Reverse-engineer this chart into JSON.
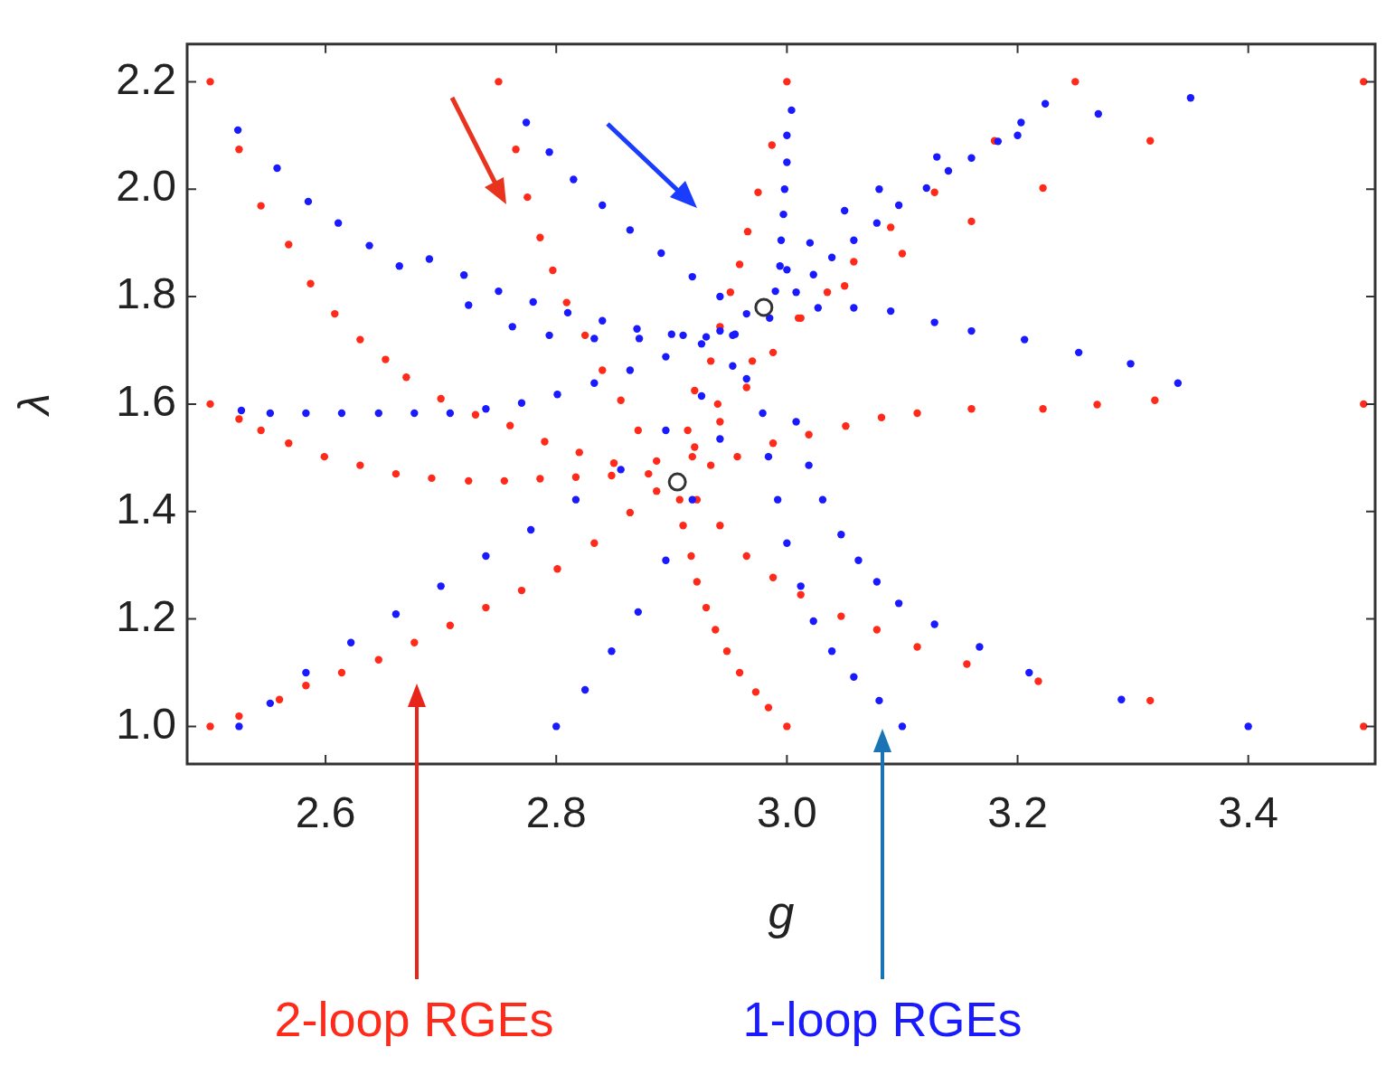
{
  "chart_data": {
    "type": "scatter",
    "xlabel": "g",
    "ylabel": "λ",
    "xlim": [
      2.48,
      3.51
    ],
    "ylim": [
      0.93,
      2.27
    ],
    "xticks": [
      2.6,
      2.8,
      {
        "value": 3.0,
        "label": "3.0"
      },
      3.2,
      3.4
    ],
    "yticks": [
      {
        "value": 1.0,
        "label": "1.0"
      },
      1.2,
      1.4,
      1.6,
      1.8,
      {
        "value": 2.0,
        "label": "2.0"
      },
      2.2
    ],
    "grid": false,
    "legend": "bottom",
    "marker": "circle",
    "series": [
      {
        "name": "2-loop RGEs",
        "color": "#ff2a1a",
        "x": [
          2.5,
          2.525,
          2.544,
          2.568,
          2.587,
          2.608,
          2.63,
          2.652,
          2.67,
          2.7,
          2.73,
          2.76,
          2.79,
          2.82,
          2.85,
          2.88,
          2.75,
          2.765,
          2.775,
          2.786,
          2.797,
          2.809,
          2.825,
          2.84,
          2.856,
          2.871,
          2.887,
          3.0,
          2.987,
          2.975,
          2.966,
          2.959,
          2.951,
          2.942,
          2.934,
          2.92,
          2.914,
          3.25,
          3.18,
          3.16,
          3.1,
          3.05,
          3.01,
          2.97,
          2.94,
          2.92,
          3.315,
          3.222,
          3.128,
          3.09,
          3.058,
          3.035,
          3.012,
          2.988,
          2.965,
          2.942,
          2.918,
          3.319,
          3.269,
          3.222,
          3.16,
          3.113,
          3.082,
          3.051,
          3.019,
          2.988,
          2.957,
          2.934,
          2.5,
          2.525,
          2.544,
          2.568,
          2.599,
          2.63,
          2.661,
          2.692,
          2.724,
          2.755,
          2.786,
          2.817,
          2.848,
          2.5,
          2.525,
          2.56,
          2.583,
          2.614,
          2.646,
          2.677,
          2.708,
          2.739,
          2.77,
          2.801,
          2.833,
          2.864,
          2.887,
          3.0,
          2.984,
          2.973,
          2.959,
          2.948,
          2.938,
          2.93,
          2.922,
          2.917,
          2.91,
          2.907,
          3.5,
          3.315,
          3.218,
          3.156,
          3.113,
          3.078,
          3.047,
          3.012,
          2.988,
          2.965,
          2.942,
          2.922,
          3.5,
          3.5
        ],
        "values": [
          2.2,
          2.074,
          1.969,
          1.897,
          1.824,
          1.768,
          1.72,
          1.683,
          1.65,
          1.61,
          1.58,
          1.56,
          1.53,
          1.51,
          1.49,
          1.47,
          2.2,
          2.074,
          1.985,
          1.91,
          1.849,
          1.789,
          1.728,
          1.663,
          1.607,
          1.551,
          1.494,
          2.2,
          2.082,
          1.994,
          1.921,
          1.86,
          1.808,
          1.744,
          1.68,
          1.625,
          1.551,
          2.2,
          2.09,
          1.94,
          1.88,
          1.82,
          1.76,
          1.68,
          1.6,
          1.52,
          2.09,
          2.002,
          1.994,
          1.929,
          1.865,
          1.808,
          1.76,
          1.696,
          1.631,
          1.567,
          1.502,
          1.607,
          1.599,
          1.591,
          1.591,
          1.583,
          1.575,
          1.559,
          1.543,
          1.527,
          1.502,
          1.486,
          1.6,
          1.572,
          1.551,
          1.527,
          1.502,
          1.486,
          1.47,
          1.462,
          1.457,
          1.457,
          1.461,
          1.464,
          1.467,
          1.0,
          1.019,
          1.05,
          1.076,
          1.1,
          1.124,
          1.156,
          1.188,
          1.221,
          1.253,
          1.293,
          1.341,
          1.398,
          1.438,
          1.0,
          1.035,
          1.064,
          1.1,
          1.14,
          1.18,
          1.221,
          1.269,
          1.317,
          1.374,
          1.422,
          1.0,
          1.048,
          1.084,
          1.116,
          1.148,
          1.18,
          1.205,
          1.245,
          1.277,
          1.317,
          1.374,
          1.422,
          2.2,
          1.6
        ]
      },
      {
        "name": "1-loop RGEs",
        "color": "#1a1aff",
        "x": [
          2.524,
          2.558,
          2.585,
          2.611,
          2.638,
          2.664,
          2.69,
          2.72,
          2.75,
          2.78,
          2.81,
          2.84,
          2.87,
          2.9,
          2.93,
          2.955,
          2.774,
          2.794,
          2.815,
          2.84,
          2.864,
          2.891,
          2.918,
          2.942,
          2.965,
          3.004,
          3.0,
          3.0,
          2.998,
          2.997,
          2.995,
          2.994,
          2.99,
          2.985,
          3.224,
          3.203,
          3.183,
          3.16,
          3.14,
          3.121,
          3.097,
          3.078,
          3.058,
          3.039,
          3.023,
          3.008,
          3.35,
          3.27,
          3.2,
          3.13,
          3.08,
          3.05,
          3.02,
          3.0,
          3.339,
          3.298,
          3.253,
          3.206,
          3.16,
          3.128,
          3.09,
          3.058,
          3.027,
          2.527,
          2.552,
          2.583,
          2.614,
          2.646,
          2.677,
          2.708,
          2.739,
          2.77,
          2.801,
          2.833,
          2.864,
          2.895,
          2.926,
          2.953,
          2.724,
          2.762,
          2.794,
          2.833,
          2.872,
          2.91,
          2.942,
          2.525,
          2.552,
          2.583,
          2.622,
          2.661,
          2.7,
          2.739,
          2.778,
          2.817,
          2.856,
          2.895,
          2.926,
          2.953,
          2.8,
          2.825,
          2.848,
          2.871,
          2.895,
          2.918,
          2.942,
          2.965,
          3.1,
          3.08,
          3.058,
          3.039,
          3.023,
          3.012,
          3.0,
          2.992,
          2.984,
          2.979,
          3.21,
          3.167,
          3.128,
          3.097,
          3.078,
          3.062,
          3.047,
          3.031,
          3.019,
          3.008,
          3.4,
          3.29
        ],
        "values": [
          2.11,
          2.039,
          1.977,
          1.937,
          1.895,
          1.857,
          1.87,
          1.84,
          1.81,
          1.79,
          1.77,
          1.755,
          1.74,
          1.73,
          1.725,
          1.73,
          2.124,
          2.069,
          2.018,
          1.97,
          1.924,
          1.881,
          1.837,
          1.8,
          1.768,
          2.147,
          2.1,
          2.05,
          2.0,
          1.953,
          1.905,
          1.857,
          1.81,
          1.76,
          2.159,
          2.124,
          2.089,
          2.058,
          2.034,
          2.002,
          1.97,
          1.937,
          1.905,
          1.873,
          1.841,
          1.808,
          2.17,
          2.14,
          2.1,
          2.06,
          2.0,
          1.96,
          1.9,
          1.85,
          1.639,
          1.675,
          1.696,
          1.72,
          1.736,
          1.752,
          1.773,
          1.779,
          1.779,
          1.588,
          1.583,
          1.583,
          1.583,
          1.583,
          1.583,
          1.583,
          1.591,
          1.602,
          1.618,
          1.639,
          1.663,
          1.688,
          1.712,
          1.728,
          1.784,
          1.744,
          1.728,
          1.722,
          1.722,
          1.728,
          1.736,
          1.0,
          1.043,
          1.1,
          1.156,
          1.209,
          1.261,
          1.317,
          1.366,
          1.422,
          1.478,
          1.551,
          1.615,
          1.671,
          1.0,
          1.068,
          1.14,
          1.213,
          1.309,
          1.422,
          1.535,
          1.647,
          1.0,
          1.048,
          1.092,
          1.14,
          1.196,
          1.261,
          1.341,
          1.422,
          1.502,
          1.583,
          1.1,
          1.148,
          1.19,
          1.229,
          1.269,
          1.309,
          1.357,
          1.422,
          1.486,
          1.567,
          1.0,
          1.05
        ]
      },
      {
        "color": "#ffffff",
        "x": [
          2.98,
          2.905
        ],
        "values": [
          1.78,
          1.455
        ]
      }
    ]
  }
}
